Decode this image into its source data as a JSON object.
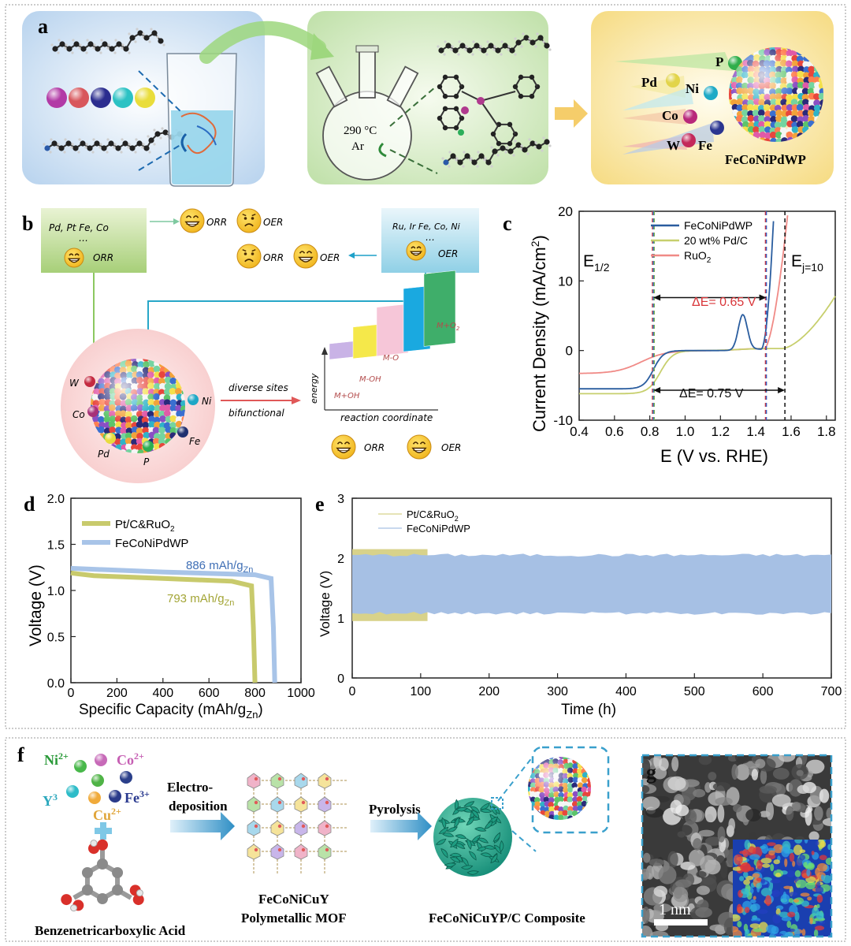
{
  "panel_labels": {
    "a": "a",
    "b": "b",
    "c": "c",
    "d": "d",
    "e": "e",
    "f": "f",
    "g": "g"
  },
  "panel_a": {
    "temperature": "290 °C",
    "atmosphere": "Ar",
    "elements": [
      "P",
      "Pd",
      "Ni",
      "Co",
      "W",
      "Fe"
    ],
    "product": "FeCoNiPdWP"
  },
  "panel_b": {
    "box_left_line1": "Pd, Pt Fe, Co",
    "box_left_line2": "…",
    "box_left_reaction": "ORR",
    "box_right_line1": "Ru, Ir  Fe, Co, Ni",
    "box_right_line2": "…",
    "box_right_reaction": "OER",
    "row1_orr": "ORR",
    "row1_oer": "OER",
    "row2_orr": "ORR",
    "row2_oer": "OER",
    "sphere_elements": [
      "W",
      "Co",
      "Pd",
      "P",
      "Fe",
      "Ni"
    ],
    "arrow_top": "diverse sites",
    "arrow_bottom": "bifunctional",
    "bars": [
      "M+OH",
      "M-OH",
      "M-O",
      "M+O"
    ],
    "bars_o2_sub": "2",
    "y_axis": "energy",
    "x_axis": "reaction coordinate",
    "bottom_orr": "ORR",
    "bottom_oer": "OER",
    "bar_colors": [
      "#c9b3e6",
      "#f5e84a",
      "#f6c6d8",
      "#1aa9e0",
      "#3fae6a"
    ]
  },
  "panel_c": {
    "ylabel": "Current Density (mA/cm",
    "ylabel_sup": "2",
    "ylabel_end": ")",
    "xlabel": "E (V vs. RHE)",
    "x_ticks": [
      "0.4",
      "0.6",
      "0.8",
      "1.0",
      "1.2",
      "1.4",
      "1.6",
      "1.8"
    ],
    "y_ticks": [
      "-10",
      "0",
      "10",
      "20"
    ],
    "legend": [
      {
        "name": "FeCoNiPdWP",
        "color": "#2a5d9f"
      },
      {
        "name": "20 wt% Pd/C",
        "color": "#c7cf6d"
      },
      {
        "name": "RuO",
        "sub": "2",
        "color": "#f08a86"
      }
    ],
    "e_half": "E",
    "e_half_sub": "1/2",
    "e_j10": "E",
    "e_j10_sub": "j=10",
    "delta1": "ΔE= 0.65 V",
    "delta2": "ΔE= 0.75 V"
  },
  "panel_d": {
    "ylabel": "Voltage (V)",
    "xlabel": "Specific Capacity (mAh/g",
    "xlabel_sub": "Zn",
    "xlabel_end": ")",
    "x_ticks": [
      "0",
      "200",
      "400",
      "600",
      "800",
      "1000"
    ],
    "y_ticks": [
      "0.0",
      "0.5",
      "1.0",
      "1.5",
      "2.0"
    ],
    "legend": [
      {
        "name": "Pt/C&RuO",
        "sub": "2",
        "color": "#c8ca6c"
      },
      {
        "name": "FeCoNiPdWP",
        "sub": "",
        "color": "#a8c4e8"
      }
    ],
    "ann1": "886 mAh/g",
    "ann1_sub": "Zn",
    "ann2": "793 mAh/g",
    "ann2_sub": "Zn"
  },
  "panel_e": {
    "ylabel": "Voltage (V)",
    "xlabel": "Time (h)",
    "x_ticks": [
      "0",
      "100",
      "200",
      "300",
      "400",
      "500",
      "600",
      "700"
    ],
    "y_ticks": [
      "0",
      "1",
      "2",
      "3"
    ],
    "legend": [
      {
        "name": "Pt/C&RuO",
        "sub": "2",
        "color": "#d8d28a"
      },
      {
        "name": "FeCoNiPdWP",
        "sub": "",
        "color": "#a6c0e4"
      }
    ]
  },
  "panel_f": {
    "ions": {
      "ni": "Ni",
      "ni_sup": "2+",
      "co": "Co",
      "co_sup": "2+",
      "y": "Y",
      "y_sup": "3",
      "fe": "Fe",
      "fe_sup": "3+",
      "cu": "Cu",
      "cu_sup": "2+"
    },
    "arrow1_line1": "Electro-",
    "arrow1_line2": "deposition",
    "mof_line1": "FeCoNiCuY",
    "mof_line2": "Polymetallic MOF",
    "arrow2": "Pyrolysis",
    "composite": "FeCoNiCuYP/C Composite",
    "acid": "Benzenetricarboxylic Acid"
  },
  "panel_g": {
    "scale": "1 nm"
  }
}
